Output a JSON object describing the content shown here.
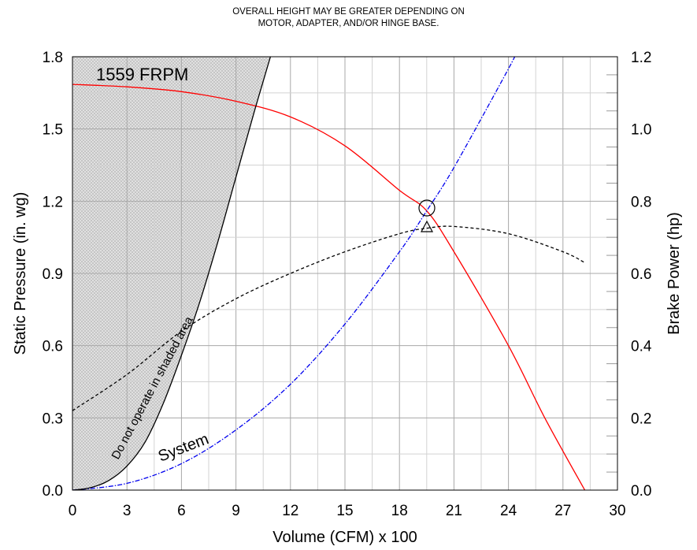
{
  "note": {
    "line1": "OVERALL HEIGHT MAY BE GREATER DEPENDING ON",
    "line2": "MOTOR, ADAPTER, AND/OR HINGE BASE."
  },
  "chart_data": {
    "type": "line",
    "xlabel": "Volume (CFM) x 100",
    "ylabel": "Static Pressure (in. wg)",
    "y2label": "Brake Power (hp)",
    "xlim": [
      0,
      30
    ],
    "ylim": [
      0,
      1.8
    ],
    "y2lim": [
      0,
      1.2
    ],
    "x_ticks": [
      "0",
      "3",
      "6",
      "9",
      "12",
      "15",
      "18",
      "21",
      "24",
      "27",
      "30"
    ],
    "y_ticks": [
      "0.0",
      "0.3",
      "0.6",
      "0.9",
      "1.2",
      "1.5",
      "1.8"
    ],
    "y2_ticks": [
      "0.0",
      "0.2",
      "0.4",
      "0.6",
      "0.8",
      "1.0",
      "1.2"
    ],
    "grid": true,
    "annotations": {
      "speed": "1559 FRPM",
      "shaded": "Do not operate in shaded area",
      "system": "System"
    },
    "operating_point": {
      "x": 19.5,
      "pressure": 1.16,
      "power": 0.73
    },
    "series": [
      {
        "name": "1559 FRPM",
        "axis": "left",
        "color": "#ff0000",
        "style": "solid",
        "x": [
          0,
          3,
          6,
          9,
          12,
          15,
          18,
          19.5,
          21,
          24,
          26,
          28.2
        ],
        "y": [
          1.685,
          1.675,
          1.655,
          1.615,
          1.55,
          1.43,
          1.245,
          1.16,
          0.99,
          0.6,
          0.3,
          0.0
        ]
      },
      {
        "name": "System",
        "axis": "left",
        "color": "#0000ee",
        "style": "dashdot",
        "x": [
          0,
          3,
          6,
          9,
          12,
          15,
          18,
          19.5,
          21,
          24,
          24.5
        ],
        "y": [
          0.0,
          0.028,
          0.11,
          0.25,
          0.44,
          0.69,
          0.99,
          1.16,
          1.34,
          1.75,
          1.83
        ]
      },
      {
        "name": "",
        "axis": "right",
        "color": "#000000",
        "style": "dashed",
        "x": [
          0,
          3,
          6,
          9,
          12,
          15,
          18,
          19.5,
          21,
          24,
          27,
          28.2
        ],
        "y": [
          0.22,
          0.32,
          0.44,
          0.53,
          0.6,
          0.66,
          0.71,
          0.725,
          0.73,
          0.71,
          0.66,
          0.63
        ]
      },
      {
        "name": "",
        "axis": "left",
        "color": "#000000",
        "style": "solid",
        "x": [
          0,
          1,
          2,
          3,
          4,
          5,
          6,
          7,
          8,
          9,
          10,
          10.9
        ],
        "y": [
          0.0,
          0.01,
          0.04,
          0.1,
          0.2,
          0.36,
          0.56,
          0.78,
          1.03,
          1.3,
          1.57,
          1.8
        ]
      }
    ]
  }
}
